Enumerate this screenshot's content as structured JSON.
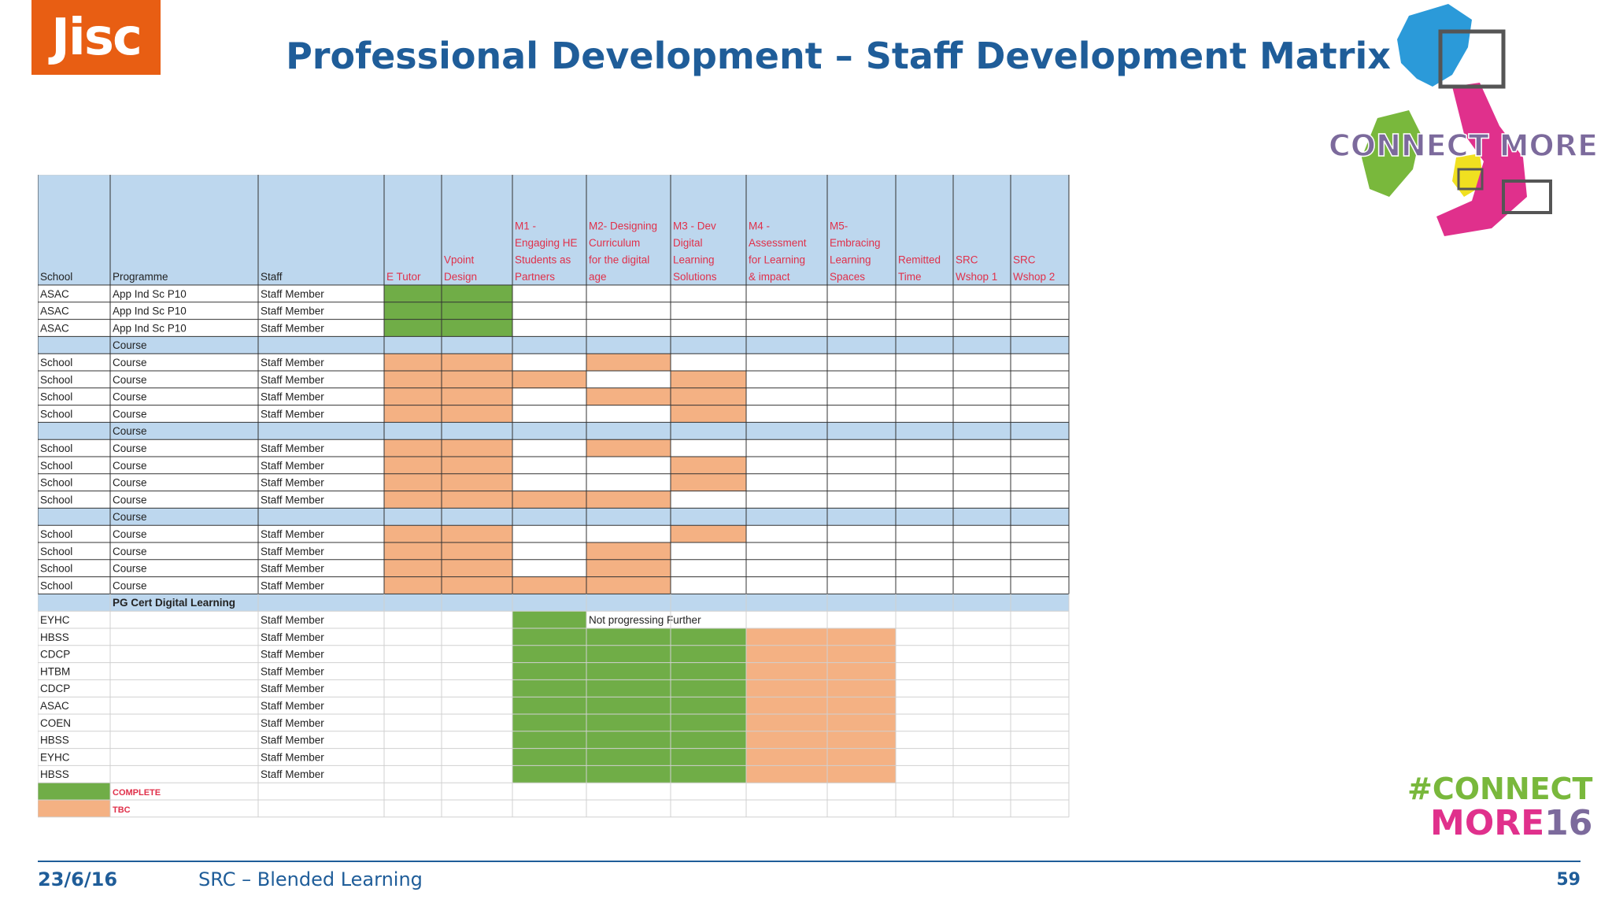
{
  "slide": {
    "logo_text": "Jisc",
    "title": "Professional Development – Staff Development Matrix",
    "map_logo_text": "CONNECT MORE",
    "hashtag_line1": "#CONNECT",
    "hashtag_line2_text": "MORE",
    "hashtag_line2_num": "16",
    "footer_date": "23/6/16",
    "footer_label": "SRC – Blended Learning",
    "page_number": "59"
  },
  "colors": {
    "header_blue": "#bdd7ee",
    "complete_green": "#70ad47",
    "tbc_orange": "#f4b183",
    "header_red_text": "#e0304a",
    "title_blue": "#1f5d99"
  },
  "matrix": {
    "columns": [
      "School",
      "Programme",
      "Staff",
      "E Tutor",
      "Vpoint Design",
      "M1 - Engaging HE Students as Partners",
      "M2- Designing Curriculum for the digital age",
      "M3 - Dev Digital Learning Solutions",
      "M4 - Assessment for Learning & impact",
      "M5- Embracing Learning Spaces",
      "Remitted Time",
      "SRC Wshop 1",
      "SRC Wshop 2"
    ],
    "column_lines": [
      [
        "School"
      ],
      [
        "Programme"
      ],
      [
        "Staff"
      ],
      [
        "E Tutor"
      ],
      [
        "Vpoint",
        "Design"
      ],
      [
        "M1 -",
        "Engaging HE",
        "Students as",
        "Partners"
      ],
      [
        "M2- Designing",
        "Curriculum",
        "for the digital",
        "age"
      ],
      [
        "M3 - Dev",
        "Digital",
        "Learning",
        "Solutions"
      ],
      [
        "M4 -",
        "Assessment",
        "for Learning",
        "& impact"
      ],
      [
        "M5-",
        "Embracing",
        "Learning",
        "Spaces"
      ],
      [
        "Remitted",
        "Time"
      ],
      [
        "SRC",
        "Wshop 1"
      ],
      [
        "SRC",
        "Wshop 2"
      ]
    ],
    "rows": [
      {
        "cells": [
          "ASAC",
          "App Ind Sc P10",
          "Staff Member"
        ],
        "status": [
          "C",
          "C",
          "",
          "",
          "",
          "",
          "",
          "",
          "",
          ""
        ]
      },
      {
        "cells": [
          "ASAC",
          "App Ind Sc P10",
          "Staff Member"
        ],
        "status": [
          "C",
          "C",
          "",
          "",
          "",
          "",
          "",
          "",
          "",
          ""
        ]
      },
      {
        "cells": [
          "ASAC",
          "App Ind Sc P10",
          "Staff Member"
        ],
        "status": [
          "C",
          "C",
          "",
          "",
          "",
          "",
          "",
          "",
          "",
          ""
        ]
      },
      {
        "group": true,
        "cells": [
          "",
          "Course",
          ""
        ]
      },
      {
        "cells": [
          "School",
          "Course",
          "Staff Member"
        ],
        "status": [
          "T",
          "T",
          "",
          "T",
          "",
          "",
          "",
          "",
          "",
          ""
        ]
      },
      {
        "cells": [
          "School",
          "Course",
          "Staff Member"
        ],
        "status": [
          "T",
          "T",
          "T",
          "",
          "T",
          "",
          "",
          "",
          "",
          ""
        ]
      },
      {
        "cells": [
          "School",
          "Course",
          "Staff Member"
        ],
        "status": [
          "T",
          "T",
          "",
          "T",
          "T",
          "",
          "",
          "",
          "",
          ""
        ]
      },
      {
        "cells": [
          "School",
          "Course",
          "Staff Member"
        ],
        "status": [
          "T",
          "T",
          "",
          "",
          "T",
          "",
          "",
          "",
          "",
          ""
        ]
      },
      {
        "group": true,
        "cells": [
          "",
          "Course",
          ""
        ]
      },
      {
        "cells": [
          "School",
          "Course",
          "Staff Member"
        ],
        "status": [
          "T",
          "T",
          "",
          "T",
          "",
          "",
          "",
          "",
          "",
          ""
        ]
      },
      {
        "cells": [
          "School",
          "Course",
          "Staff Member"
        ],
        "status": [
          "T",
          "T",
          "",
          "",
          "T",
          "",
          "",
          "",
          "",
          ""
        ]
      },
      {
        "cells": [
          "School",
          "Course",
          "Staff Member"
        ],
        "status": [
          "T",
          "T",
          "",
          "",
          "T",
          "",
          "",
          "",
          "",
          ""
        ]
      },
      {
        "cells": [
          "School",
          "Course",
          "Staff Member"
        ],
        "status": [
          "T",
          "T",
          "T",
          "T",
          "",
          "",
          "",
          "",
          "",
          ""
        ]
      },
      {
        "group": true,
        "cells": [
          "",
          "Course",
          ""
        ]
      },
      {
        "cells": [
          "School",
          "Course",
          "Staff Member"
        ],
        "status": [
          "T",
          "T",
          "",
          "",
          "T",
          "",
          "",
          "",
          "",
          ""
        ]
      },
      {
        "cells": [
          "School",
          "Course",
          "Staff Member"
        ],
        "status": [
          "T",
          "T",
          "",
          "T",
          "",
          "",
          "",
          "",
          "",
          ""
        ]
      },
      {
        "cells": [
          "School",
          "Course",
          "Staff Member"
        ],
        "status": [
          "T",
          "T",
          "",
          "T",
          "",
          "",
          "",
          "",
          "",
          ""
        ]
      },
      {
        "cells": [
          "School",
          "Course",
          "Staff Member"
        ],
        "status": [
          "T",
          "T",
          "T",
          "T",
          "",
          "",
          "",
          "",
          "",
          ""
        ]
      },
      {
        "group": true,
        "cells": [
          "",
          "PG Cert Digital Learning",
          ""
        ],
        "bold": true
      },
      {
        "cells": [
          "EYHC",
          "",
          "Staff Member"
        ],
        "status": [
          "",
          "",
          "C",
          "",
          "",
          "",
          "",
          "",
          "",
          ""
        ],
        "note": "Not progressing Further"
      },
      {
        "cells": [
          "HBSS",
          "",
          "Staff Member"
        ],
        "status": [
          "",
          "",
          "C",
          "C",
          "C",
          "T",
          "T",
          "",
          "",
          ""
        ]
      },
      {
        "cells": [
          "CDCP",
          "",
          "Staff Member"
        ],
        "status": [
          "",
          "",
          "C",
          "C",
          "C",
          "T",
          "T",
          "",
          "",
          ""
        ]
      },
      {
        "cells": [
          "HTBM",
          "",
          "Staff Member"
        ],
        "status": [
          "",
          "",
          "C",
          "C",
          "C",
          "T",
          "T",
          "",
          "",
          ""
        ]
      },
      {
        "cells": [
          "CDCP",
          "",
          "Staff Member"
        ],
        "status": [
          "",
          "",
          "C",
          "C",
          "C",
          "T",
          "T",
          "",
          "",
          ""
        ]
      },
      {
        "cells": [
          "ASAC",
          "",
          "Staff Member"
        ],
        "status": [
          "",
          "",
          "C",
          "C",
          "C",
          "T",
          "T",
          "",
          "",
          ""
        ]
      },
      {
        "cells": [
          "COEN",
          "",
          "Staff Member"
        ],
        "status": [
          "",
          "",
          "C",
          "C",
          "C",
          "T",
          "T",
          "",
          "",
          ""
        ]
      },
      {
        "cells": [
          "HBSS",
          "",
          "Staff Member"
        ],
        "status": [
          "",
          "",
          "C",
          "C",
          "C",
          "T",
          "T",
          "",
          "",
          ""
        ]
      },
      {
        "cells": [
          "EYHC",
          "",
          "Staff Member"
        ],
        "status": [
          "",
          "",
          "C",
          "C",
          "C",
          "T",
          "T",
          "",
          "",
          ""
        ]
      },
      {
        "cells": [
          "HBSS",
          "",
          "Staff Member"
        ],
        "status": [
          "",
          "",
          "C",
          "C",
          "C",
          "T",
          "T",
          "",
          "",
          ""
        ]
      }
    ],
    "legend": [
      {
        "label": "COMPLETE",
        "status": "C"
      },
      {
        "label": "TBC",
        "status": "T"
      }
    ]
  }
}
